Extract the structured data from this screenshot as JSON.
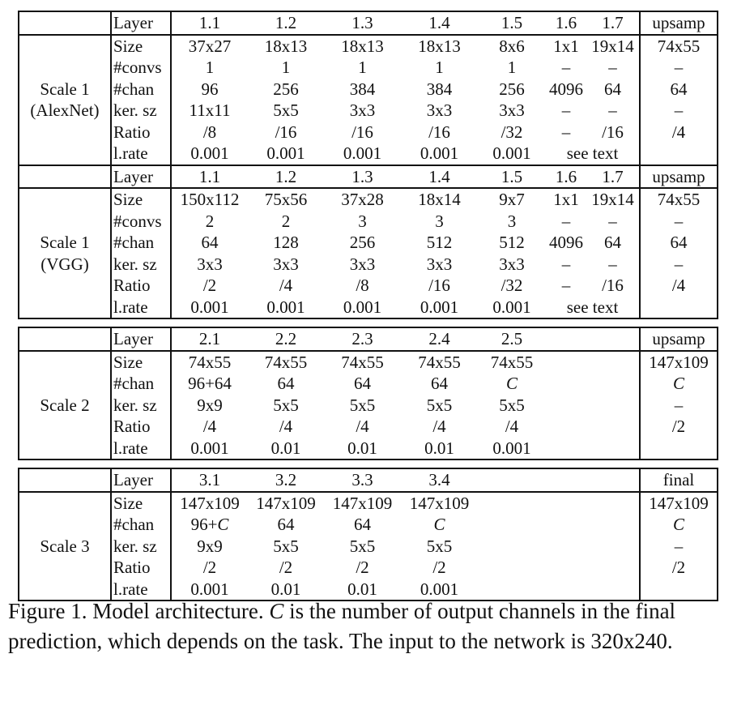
{
  "sections": [
    {
      "scale_label": "Scale 1",
      "scale_sublabel": "(AlexNet)",
      "header": [
        "Layer",
        "1.1",
        "1.2",
        "1.3",
        "1.4",
        "1.5",
        "1.6",
        "1.7",
        "upsamp"
      ],
      "rows": [
        {
          "label": "Size",
          "cells": [
            "37x27",
            "18x13",
            "18x13",
            "18x13",
            "8x6",
            "1x1",
            "19x14"
          ],
          "up": "74x55"
        },
        {
          "label": "#convs",
          "cells": [
            "1",
            "1",
            "1",
            "1",
            "1",
            "–",
            "–"
          ],
          "up": "–"
        },
        {
          "label": "#chan",
          "cells": [
            "96",
            "256",
            "384",
            "384",
            "256",
            "4096",
            "64"
          ],
          "up": "64"
        },
        {
          "label": "ker. sz",
          "cells": [
            "11x11",
            "5x5",
            "3x3",
            "3x3",
            "3x3",
            "–",
            "–"
          ],
          "up": "–"
        },
        {
          "label": "Ratio",
          "cells": [
            "/8",
            "/16",
            "/16",
            "/16",
            "/32",
            "–",
            "/16"
          ],
          "up": "/4"
        },
        {
          "label": "l.rate",
          "cells": [
            "0.001",
            "0.001",
            "0.001",
            "0.001",
            "0.001"
          ],
          "span_text": "see text",
          "up": ""
        }
      ]
    },
    {
      "scale_label": "Scale 1",
      "scale_sublabel": "(VGG)",
      "header": [
        "Layer",
        "1.1",
        "1.2",
        "1.3",
        "1.4",
        "1.5",
        "1.6",
        "1.7",
        "upsamp"
      ],
      "rows": [
        {
          "label": "Size",
          "cells": [
            "150x112",
            "75x56",
            "37x28",
            "18x14",
            "9x7",
            "1x1",
            "19x14"
          ],
          "up": "74x55"
        },
        {
          "label": "#convs",
          "cells": [
            "2",
            "2",
            "3",
            "3",
            "3",
            "–",
            "–"
          ],
          "up": "–"
        },
        {
          "label": "#chan",
          "cells": [
            "64",
            "128",
            "256",
            "512",
            "512",
            "4096",
            "64"
          ],
          "up": "64"
        },
        {
          "label": "ker. sz",
          "cells": [
            "3x3",
            "3x3",
            "3x3",
            "3x3",
            "3x3",
            "–",
            "–"
          ],
          "up": "–"
        },
        {
          "label": "Ratio",
          "cells": [
            "/2",
            "/4",
            "/8",
            "/16",
            "/32",
            "–",
            "/16"
          ],
          "up": "/4"
        },
        {
          "label": "l.rate",
          "cells": [
            "0.001",
            "0.001",
            "0.001",
            "0.001",
            "0.001"
          ],
          "span_text": "see text",
          "up": ""
        }
      ]
    },
    {
      "scale_label": "Scale 2",
      "scale_sublabel": "",
      "header": [
        "Layer",
        "2.1",
        "2.2",
        "2.3",
        "2.4",
        "2.5",
        "",
        "",
        "upsamp"
      ],
      "rows": [
        {
          "label": "Size",
          "cells": [
            "74x55",
            "74x55",
            "74x55",
            "74x55",
            "74x55",
            "",
            ""
          ],
          "up": "147x109"
        },
        {
          "label": "#chan",
          "cells": [
            "96+64",
            "64",
            "64",
            "64",
            "C",
            "",
            ""
          ],
          "up": "C"
        },
        {
          "label": "ker. sz",
          "cells": [
            "9x9",
            "5x5",
            "5x5",
            "5x5",
            "5x5",
            "",
            ""
          ],
          "up": "–"
        },
        {
          "label": "Ratio",
          "cells": [
            "/4",
            "/4",
            "/4",
            "/4",
            "/4",
            "",
            ""
          ],
          "up": "/2"
        },
        {
          "label": "l.rate",
          "cells": [
            "0.001",
            "0.01",
            "0.01",
            "0.01",
            "0.001",
            "",
            ""
          ],
          "up": ""
        }
      ]
    },
    {
      "scale_label": "Scale 3",
      "scale_sublabel": "",
      "header": [
        "Layer",
        "3.1",
        "3.2",
        "3.3",
        "3.4",
        "",
        "",
        "",
        "final"
      ],
      "rows": [
        {
          "label": "Size",
          "cells": [
            "147x109",
            "147x109",
            "147x109",
            "147x109",
            "",
            "",
            ""
          ],
          "up": "147x109"
        },
        {
          "label": "#chan",
          "cells": [
            "96+C",
            "64",
            "64",
            "C",
            "",
            "",
            ""
          ],
          "up": "C"
        },
        {
          "label": "ker. sz",
          "cells": [
            "9x9",
            "5x5",
            "5x5",
            "5x5",
            "",
            "",
            ""
          ],
          "up": "–"
        },
        {
          "label": "Ratio",
          "cells": [
            "/2",
            "/2",
            "/2",
            "/2",
            "",
            "",
            ""
          ],
          "up": "/2"
        },
        {
          "label": "l.rate",
          "cells": [
            "0.001",
            "0.01",
            "0.01",
            "0.001",
            "",
            "",
            ""
          ],
          "up": ""
        }
      ]
    }
  ],
  "caption": "Figure 1. Model architecture. C is the number of output channels in the final prediction, which depends on the task. The input to the network is 320x240."
}
